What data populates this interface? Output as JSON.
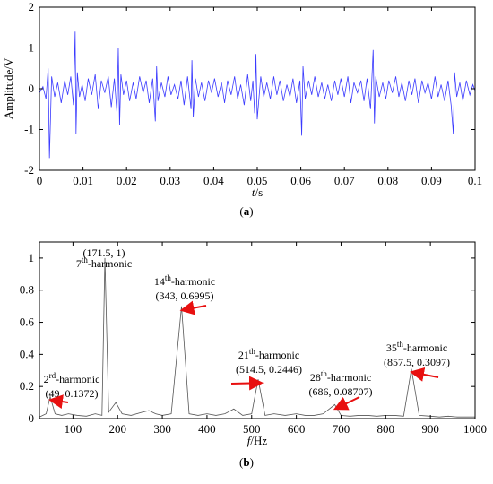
{
  "colors": {
    "signal": "#3a3aff",
    "spectrum": "#555555",
    "arrow": "#e81010",
    "axis": "#000000"
  },
  "chart_data": [
    {
      "type": "line",
      "panel_label": "(a)",
      "panel_letter": "a",
      "xlabel_italic": "t",
      "xlabel_unit": "/s",
      "ylabel": "Amplitude/V",
      "xlim": [
        0,
        0.1
      ],
      "ylim": [
        -2,
        2
      ],
      "xticks": [
        0,
        0.01,
        0.02,
        0.03,
        0.04,
        0.05,
        0.06,
        0.07,
        0.08,
        0.09,
        0.1
      ],
      "xtick_labels": [
        "0",
        "0.01",
        "0.02",
        "0.03",
        "0.04",
        "0.05",
        "0.06",
        "0.07",
        "0.08",
        "0.09",
        "0.1"
      ],
      "yticks": [
        -2,
        -1,
        0,
        1,
        2
      ],
      "ytick_labels": [
        "-2",
        "-1",
        "0",
        "1",
        "2"
      ],
      "series": [
        {
          "x": [
            0,
            0.0008,
            0.0015,
            0.002,
            0.0023,
            0.0028,
            0.0035,
            0.0042,
            0.005,
            0.0058,
            0.0065,
            0.0072,
            0.0078,
            0.0082,
            0.0084,
            0.0087,
            0.0092,
            0.0098,
            0.0105,
            0.0112,
            0.012,
            0.0128,
            0.0135,
            0.0142,
            0.015,
            0.0158,
            0.0165,
            0.0172,
            0.0178,
            0.0181,
            0.0184,
            0.0187,
            0.0193,
            0.02,
            0.0207,
            0.0215,
            0.0222,
            0.023,
            0.0238,
            0.0245,
            0.0252,
            0.026,
            0.0266,
            0.0269,
            0.0272,
            0.028,
            0.0288,
            0.0295,
            0.0302,
            0.031,
            0.0318,
            0.0325,
            0.0332,
            0.034,
            0.0348,
            0.035,
            0.0353,
            0.0358,
            0.0365,
            0.0372,
            0.038,
            0.0388,
            0.0395,
            0.0402,
            0.041,
            0.0418,
            0.0425,
            0.0432,
            0.044,
            0.0448,
            0.0455,
            0.0462,
            0.047,
            0.0478,
            0.0485,
            0.049,
            0.0494,
            0.0497,
            0.05,
            0.0508,
            0.0515,
            0.0522,
            0.053,
            0.0538,
            0.0545,
            0.0552,
            0.056,
            0.0568,
            0.0575,
            0.0582,
            0.059,
            0.0598,
            0.0602,
            0.0605,
            0.061,
            0.0618,
            0.0625,
            0.0632,
            0.064,
            0.0648,
            0.0655,
            0.0662,
            0.067,
            0.0678,
            0.0685,
            0.0692,
            0.07,
            0.0708,
            0.0715,
            0.0722,
            0.073,
            0.0738,
            0.0745,
            0.0752,
            0.076,
            0.0766,
            0.0769,
            0.0772,
            0.078,
            0.0788,
            0.0795,
            0.0802,
            0.081,
            0.0818,
            0.0825,
            0.0832,
            0.084,
            0.0848,
            0.0855,
            0.0862,
            0.087,
            0.0878,
            0.0885,
            0.0892,
            0.09,
            0.0908,
            0.0915,
            0.0922,
            0.093,
            0.0938,
            0.0945,
            0.095,
            0.0953,
            0.0958,
            0.0965,
            0.0972,
            0.098,
            0.0988,
            0.0995,
            0.1
          ],
          "y": [
            -0.1,
            0.05,
            -0.25,
            0.5,
            -1.7,
            0.3,
            -0.2,
            0.15,
            -0.35,
            0.2,
            -0.15,
            0.3,
            -0.4,
            1.4,
            -1.1,
            0.4,
            -0.2,
            0.1,
            -0.3,
            0.25,
            -0.15,
            0.35,
            -0.5,
            0.2,
            -0.1,
            0.3,
            -0.45,
            0.25,
            -0.6,
            1.0,
            -0.9,
            0.35,
            -0.15,
            0.2,
            -0.3,
            0.15,
            -0.25,
            0.3,
            -0.1,
            0.2,
            -0.35,
            0.25,
            -0.8,
            0.55,
            -0.3,
            0.15,
            -0.2,
            0.3,
            -0.15,
            0.1,
            -0.25,
            0.2,
            -0.4,
            0.3,
            -0.5,
            0.7,
            -0.7,
            0.25,
            -0.2,
            0.15,
            -0.3,
            0.2,
            -0.1,
            0.25,
            -0.2,
            0.15,
            -0.35,
            0.2,
            -0.15,
            0.3,
            -0.25,
            0.1,
            -0.4,
            0.35,
            -0.3,
            0.2,
            -0.6,
            0.85,
            -0.75,
            0.3,
            -0.2,
            0.15,
            -0.25,
            0.3,
            -0.15,
            0.2,
            -0.3,
            0.1,
            -0.2,
            0.25,
            -0.35,
            0.2,
            -1.15,
            0.55,
            -0.25,
            0.2,
            -0.15,
            0.3,
            -0.2,
            0.15,
            -0.25,
            0.1,
            -0.3,
            0.2,
            -0.15,
            0.25,
            -0.2,
            0.3,
            -0.35,
            0.15,
            -0.1,
            0.2,
            -0.3,
            0.25,
            -0.5,
            0.95,
            -0.85,
            0.3,
            -0.2,
            0.15,
            -0.25,
            0.2,
            -0.1,
            0.3,
            -0.2,
            0.15,
            -0.3,
            0.2,
            -0.15,
            0.25,
            -0.35,
            0.2,
            -0.1,
            0.15,
            -0.25,
            0.3,
            -0.2,
            0.1,
            -0.3,
            0.2,
            -0.4,
            -1.1,
            0.4,
            -0.2,
            0.15,
            -0.3,
            0.2,
            -0.15,
            0.1,
            -0.05
          ]
        }
      ]
    },
    {
      "type": "line",
      "panel_label": "(b)",
      "panel_letter": "b",
      "xlabel_italic": "f",
      "xlabel_unit": "/Hz",
      "xlim": [
        25,
        1000
      ],
      "ylim": [
        0,
        1.1
      ],
      "xticks": [
        100,
        200,
        300,
        400,
        500,
        600,
        700,
        800,
        900,
        1000
      ],
      "xtick_labels": [
        "100",
        "200",
        "300",
        "400",
        "500",
        "600",
        "700",
        "800",
        "900",
        "1000"
      ],
      "yticks": [
        0,
        0.2,
        0.4,
        0.6,
        0.8,
        1
      ],
      "ytick_labels": [
        "0",
        "0.2",
        "0.4",
        "0.6",
        "0.8",
        "1"
      ],
      "series": [
        {
          "x": [
            25,
            40,
            49,
            60,
            75,
            90,
            110,
            130,
            150,
            165,
            171.5,
            180,
            196,
            210,
            230,
            255,
            270,
            285,
            300,
            320,
            343,
            360,
            380,
            400,
            420,
            440,
            460,
            480,
            500,
            514.5,
            530,
            550,
            575,
            600,
            620,
            640,
            660,
            686,
            700,
            720,
            740,
            760,
            780,
            800,
            820,
            840,
            857.5,
            875,
            900,
            920,
            940,
            960,
            980,
            1000
          ],
          "y": [
            0.01,
            0.03,
            0.1372,
            0.03,
            0.02,
            0.03,
            0.02,
            0.015,
            0.03,
            0.02,
            1.0,
            0.04,
            0.1,
            0.03,
            0.02,
            0.04,
            0.05,
            0.03,
            0.02,
            0.03,
            0.6995,
            0.03,
            0.02,
            0.03,
            0.02,
            0.03,
            0.06,
            0.02,
            0.03,
            0.2446,
            0.02,
            0.03,
            0.02,
            0.03,
            0.02,
            0.02,
            0.03,
            0.08707,
            0.02,
            0.015,
            0.02,
            0.02,
            0.015,
            0.02,
            0.02,
            0.015,
            0.3097,
            0.02,
            0.015,
            0.01,
            0.015,
            0.01,
            0.01,
            0.01
          ]
        }
      ],
      "annotations": [
        {
          "order": "2",
          "sup": "rd",
          "rest": "-harmonic",
          "coords": "(49, 0.1372)",
          "x": 49,
          "y": 0.1372
        },
        {
          "order": "7",
          "sup": "th",
          "rest": "-harmonic",
          "coords": "(171.5, 1)",
          "x": 171.5,
          "y": 1.0
        },
        {
          "order": "14",
          "sup": "th",
          "rest": "-harmonic",
          "coords": "(343, 0.6995)",
          "x": 343,
          "y": 0.6995
        },
        {
          "order": "21",
          "sup": "th",
          "rest": "-harmonic",
          "coords": "(514.5, 0.2446)",
          "x": 514.5,
          "y": 0.2446
        },
        {
          "order": "28",
          "sup": "th",
          "rest": "-harmonic",
          "coords": "(686, 0.08707)",
          "x": 686,
          "y": 0.08707
        },
        {
          "order": "35",
          "sup": "th",
          "rest": "-harmonic",
          "coords": "(857.5, 0.3097)",
          "x": 857.5,
          "y": 0.3097
        }
      ]
    }
  ]
}
